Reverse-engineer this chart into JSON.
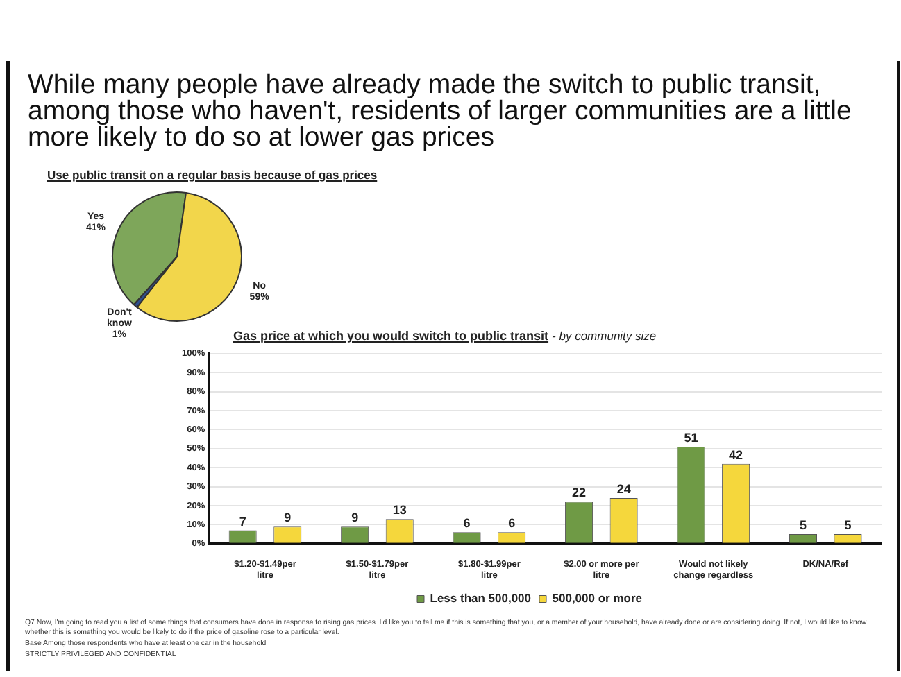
{
  "chart_data": [
    {
      "type": "pie",
      "title": "While many people have already made the switch to public transit, among those who haven't, residents of larger communities are a little more likely to do so at lower gas prices",
      "subtitle": "Use public transit on a regular basis because of gas prices",
      "categories": [
        "Yes",
        "No",
        "Don't know"
      ],
      "values": [
        41,
        59,
        1
      ],
      "colors": [
        "#7ea65a",
        "#f2d64b",
        "#2e4f8f"
      ],
      "value_labels": [
        "41%",
        "59%",
        "1%"
      ],
      "legend": false
    },
    {
      "type": "bar",
      "title": "Gas price at which you would switch to public transit",
      "subtitle": "- by community size",
      "categories": [
        "$1.20-$1.49per litre",
        "$1.50-$1.79per litre",
        "$1.80-$1.99per litre",
        "$2.00 or more per litre",
        "Would not likely change regardless",
        "DK/NA/Ref"
      ],
      "series": [
        {
          "name": "Less than 500,000",
          "color": "#6f9a45",
          "values": [
            7,
            9,
            6,
            22,
            51,
            5
          ]
        },
        {
          "name": "500,000 or more",
          "color": "#f5d73c",
          "values": [
            9,
            13,
            6,
            24,
            42,
            5
          ]
        }
      ],
      "ylim": [
        0,
        100
      ],
      "yticks": [
        {
          "value": 0,
          "label": "0%"
        },
        {
          "value": 10,
          "label": "10%"
        },
        {
          "value": 20,
          "label": "20%"
        },
        {
          "value": 30,
          "label": "30%"
        },
        {
          "value": 40,
          "label": "40%"
        },
        {
          "value": 50,
          "label": "50%"
        },
        {
          "value": 60,
          "label": "60%"
        },
        {
          "value": 70,
          "label": "70%"
        },
        {
          "value": 80,
          "label": "80%"
        },
        {
          "value": 90,
          "label": "90%"
        },
        {
          "value": 100,
          "label": "100%"
        }
      ],
      "grid": "y",
      "legend": "bottom",
      "data_labels": true,
      "annotations": [
        "Q7 Now, I'm going to read you a list of some things that consumers have done in response to rising gas prices. I'd like you to tell me if this is something that you, or a member of your household, have already done or are considering doing. If not, I would like to know whether this is something you would be likely to do if the price of gasoline rose to a particular level.",
        "Base Among those respondents who have at least one car in the household",
        "STRICTLY PRIVILEGED AND CONFIDENTIAL"
      ]
    }
  ]
}
